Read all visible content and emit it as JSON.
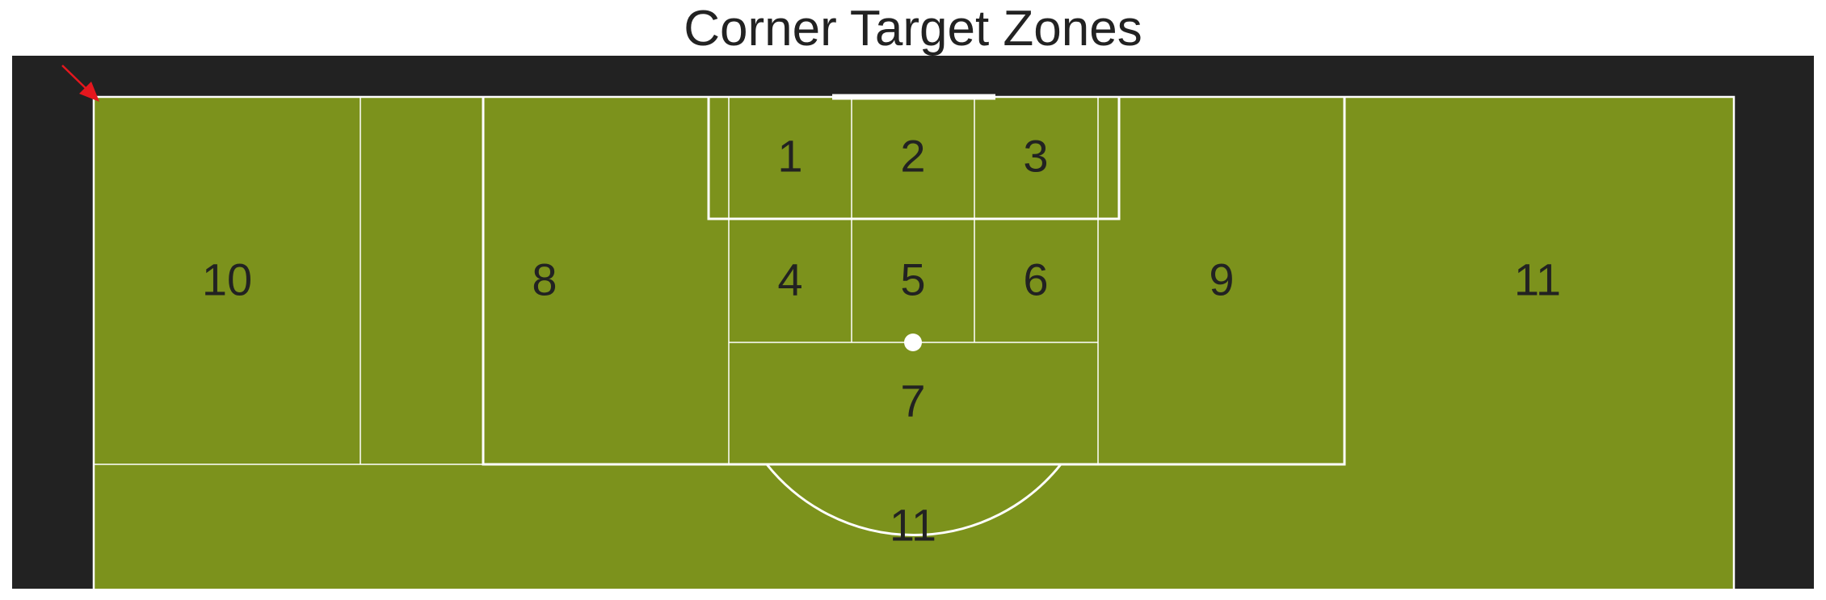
{
  "title": "Corner Target Zones",
  "colors": {
    "background": "#ffffff",
    "surround": "#222222",
    "pitch": "#7c921c",
    "lines": "#ffffff",
    "label_text": "#222222",
    "corner_arrow": "#e4171e"
  },
  "zones": [
    {
      "id": "1",
      "label": "1"
    },
    {
      "id": "2",
      "label": "2"
    },
    {
      "id": "3",
      "label": "3"
    },
    {
      "id": "4",
      "label": "4"
    },
    {
      "id": "5",
      "label": "5"
    },
    {
      "id": "6",
      "label": "6"
    },
    {
      "id": "7",
      "label": "7"
    },
    {
      "id": "8",
      "label": "8"
    },
    {
      "id": "9",
      "label": "9"
    },
    {
      "id": "10",
      "label": "10"
    },
    {
      "id": "11a",
      "label": "11"
    },
    {
      "id": "11b",
      "label": "11"
    }
  ],
  "corner_marker": {
    "icon": "corner-arrow-icon"
  }
}
